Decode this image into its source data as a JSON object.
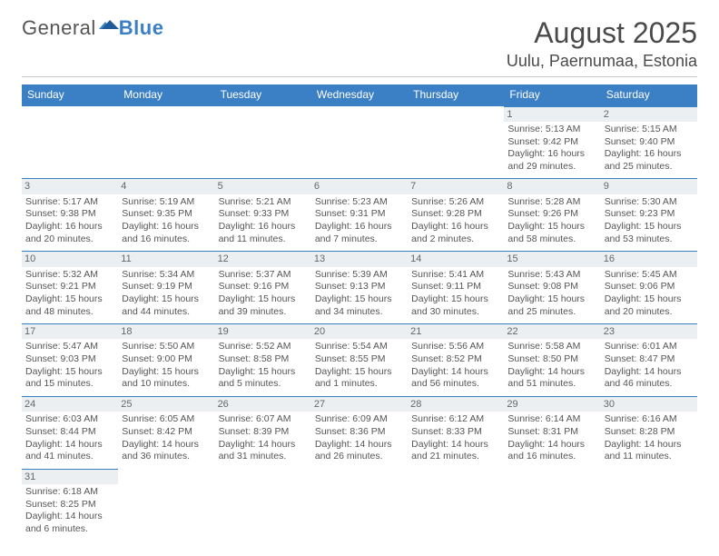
{
  "logo": {
    "text_a": "General",
    "text_b": "Blue"
  },
  "title": "August 2025",
  "location": "Uulu, Paernumaa, Estonia",
  "dow": [
    "Sunday",
    "Monday",
    "Tuesday",
    "Wednesday",
    "Thursday",
    "Friday",
    "Saturday"
  ],
  "colors": {
    "header_bg": "#3b7fc4",
    "header_fg": "#ffffff",
    "daynum_bg": "#eceff2",
    "text": "#555555",
    "rule": "#3b7fc4"
  },
  "layout": {
    "first_weekday_index": 5,
    "days_in_month": 31,
    "cols": 7
  },
  "days": [
    {
      "n": 1,
      "sunrise": "5:13 AM",
      "sunset": "9:42 PM",
      "dl_h": 16,
      "dl_m": 29
    },
    {
      "n": 2,
      "sunrise": "5:15 AM",
      "sunset": "9:40 PM",
      "dl_h": 16,
      "dl_m": 25
    },
    {
      "n": 3,
      "sunrise": "5:17 AM",
      "sunset": "9:38 PM",
      "dl_h": 16,
      "dl_m": 20
    },
    {
      "n": 4,
      "sunrise": "5:19 AM",
      "sunset": "9:35 PM",
      "dl_h": 16,
      "dl_m": 16
    },
    {
      "n": 5,
      "sunrise": "5:21 AM",
      "sunset": "9:33 PM",
      "dl_h": 16,
      "dl_m": 11
    },
    {
      "n": 6,
      "sunrise": "5:23 AM",
      "sunset": "9:31 PM",
      "dl_h": 16,
      "dl_m": 7
    },
    {
      "n": 7,
      "sunrise": "5:26 AM",
      "sunset": "9:28 PM",
      "dl_h": 16,
      "dl_m": 2
    },
    {
      "n": 8,
      "sunrise": "5:28 AM",
      "sunset": "9:26 PM",
      "dl_h": 15,
      "dl_m": 58
    },
    {
      "n": 9,
      "sunrise": "5:30 AM",
      "sunset": "9:23 PM",
      "dl_h": 15,
      "dl_m": 53
    },
    {
      "n": 10,
      "sunrise": "5:32 AM",
      "sunset": "9:21 PM",
      "dl_h": 15,
      "dl_m": 48
    },
    {
      "n": 11,
      "sunrise": "5:34 AM",
      "sunset": "9:19 PM",
      "dl_h": 15,
      "dl_m": 44
    },
    {
      "n": 12,
      "sunrise": "5:37 AM",
      "sunset": "9:16 PM",
      "dl_h": 15,
      "dl_m": 39
    },
    {
      "n": 13,
      "sunrise": "5:39 AM",
      "sunset": "9:13 PM",
      "dl_h": 15,
      "dl_m": 34
    },
    {
      "n": 14,
      "sunrise": "5:41 AM",
      "sunset": "9:11 PM",
      "dl_h": 15,
      "dl_m": 30
    },
    {
      "n": 15,
      "sunrise": "5:43 AM",
      "sunset": "9:08 PM",
      "dl_h": 15,
      "dl_m": 25
    },
    {
      "n": 16,
      "sunrise": "5:45 AM",
      "sunset": "9:06 PM",
      "dl_h": 15,
      "dl_m": 20
    },
    {
      "n": 17,
      "sunrise": "5:47 AM",
      "sunset": "9:03 PM",
      "dl_h": 15,
      "dl_m": 15
    },
    {
      "n": 18,
      "sunrise": "5:50 AM",
      "sunset": "9:00 PM",
      "dl_h": 15,
      "dl_m": 10
    },
    {
      "n": 19,
      "sunrise": "5:52 AM",
      "sunset": "8:58 PM",
      "dl_h": 15,
      "dl_m": 5
    },
    {
      "n": 20,
      "sunrise": "5:54 AM",
      "sunset": "8:55 PM",
      "dl_h": 15,
      "dl_m": 1
    },
    {
      "n": 21,
      "sunrise": "5:56 AM",
      "sunset": "8:52 PM",
      "dl_h": 14,
      "dl_m": 56
    },
    {
      "n": 22,
      "sunrise": "5:58 AM",
      "sunset": "8:50 PM",
      "dl_h": 14,
      "dl_m": 51
    },
    {
      "n": 23,
      "sunrise": "6:01 AM",
      "sunset": "8:47 PM",
      "dl_h": 14,
      "dl_m": 46
    },
    {
      "n": 24,
      "sunrise": "6:03 AM",
      "sunset": "8:44 PM",
      "dl_h": 14,
      "dl_m": 41
    },
    {
      "n": 25,
      "sunrise": "6:05 AM",
      "sunset": "8:42 PM",
      "dl_h": 14,
      "dl_m": 36
    },
    {
      "n": 26,
      "sunrise": "6:07 AM",
      "sunset": "8:39 PM",
      "dl_h": 14,
      "dl_m": 31
    },
    {
      "n": 27,
      "sunrise": "6:09 AM",
      "sunset": "8:36 PM",
      "dl_h": 14,
      "dl_m": 26
    },
    {
      "n": 28,
      "sunrise": "6:12 AM",
      "sunset": "8:33 PM",
      "dl_h": 14,
      "dl_m": 21
    },
    {
      "n": 29,
      "sunrise": "6:14 AM",
      "sunset": "8:31 PM",
      "dl_h": 14,
      "dl_m": 16
    },
    {
      "n": 30,
      "sunrise": "6:16 AM",
      "sunset": "8:28 PM",
      "dl_h": 14,
      "dl_m": 11
    },
    {
      "n": 31,
      "sunrise": "6:18 AM",
      "sunset": "8:25 PM",
      "dl_h": 14,
      "dl_m": 6
    }
  ],
  "labels": {
    "sunrise": "Sunrise:",
    "sunset": "Sunset:",
    "daylight": "Daylight:",
    "hours": "hours",
    "and": "and",
    "minutes": "minutes."
  }
}
